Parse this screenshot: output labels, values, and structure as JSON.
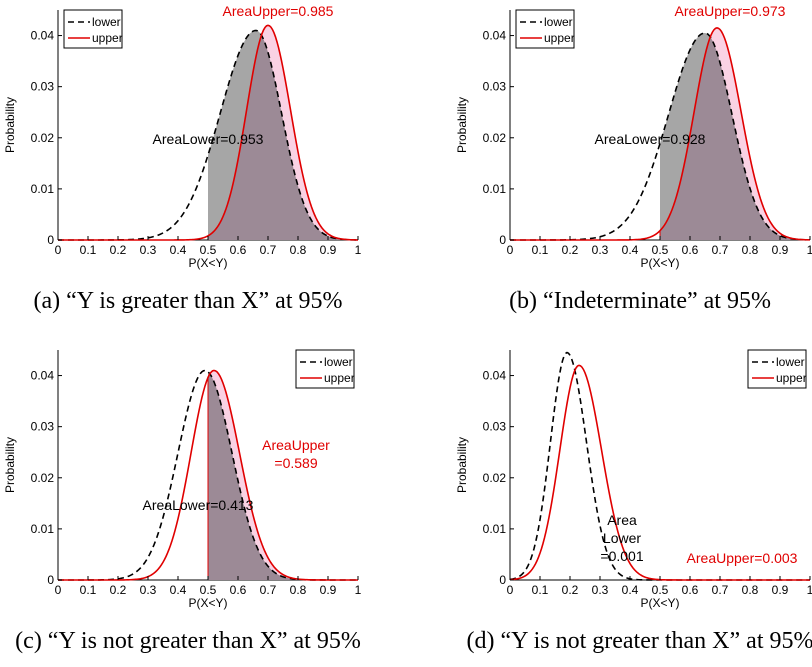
{
  "chart_data": [
    {
      "type": "line",
      "panel": "a",
      "caption": "(a) “Y is greater than X” at 95%",
      "xlabel": "P(X<Y)",
      "ylabel": "Probability",
      "xlim": [
        0,
        1
      ],
      "ylim": [
        0,
        0.045
      ],
      "x_ticks": [
        "0",
        "0.1",
        "0.2",
        "0.3",
        "0.4",
        "0.5",
        "0.6",
        "0.7",
        "0.8",
        "0.9",
        "1"
      ],
      "y_ticks": [
        "0",
        "0.01",
        "0.02",
        "0.03",
        "0.04"
      ],
      "legend": {
        "position": "top-left",
        "entries": [
          "lower",
          "upper"
        ]
      },
      "series": [
        {
          "name": "lower",
          "style": "dashed",
          "color": "#000000",
          "peak_x": 0.66,
          "peak_y": 0.041,
          "sd": 0.085,
          "left_shape": 1.4
        },
        {
          "name": "upper",
          "style": "solid",
          "color": "#e00000",
          "peak_x": 0.7,
          "peak_y": 0.042,
          "sd": 0.075,
          "left_shape": 0.95
        }
      ],
      "shade_from_x": 0.5,
      "annotations": [
        {
          "text": "AreaUpper=0.985",
          "color": "#e00000"
        },
        {
          "text": "AreaLower=0.953",
          "color": "#000000"
        }
      ]
    },
    {
      "type": "line",
      "panel": "b",
      "caption": "(b) “Indeterminate” at 95%",
      "xlabel": "P(X<Y)",
      "ylabel": "Probability",
      "xlim": [
        0,
        1
      ],
      "ylim": [
        0,
        0.045
      ],
      "x_ticks": [
        "0",
        "0.1",
        "0.2",
        "0.3",
        "0.4",
        "0.5",
        "0.6",
        "0.7",
        "0.8",
        "0.9",
        "1"
      ],
      "y_ticks": [
        "0",
        "0.01",
        "0.02",
        "0.03",
        "0.04"
      ],
      "legend": {
        "position": "top-left",
        "entries": [
          "lower",
          "upper"
        ]
      },
      "series": [
        {
          "name": "lower",
          "style": "dashed",
          "color": "#000000",
          "peak_x": 0.65,
          "peak_y": 0.0405,
          "sd": 0.09,
          "left_shape": 1.35
        },
        {
          "name": "upper",
          "style": "solid",
          "color": "#e00000",
          "peak_x": 0.69,
          "peak_y": 0.0415,
          "sd": 0.08,
          "left_shape": 0.95
        }
      ],
      "shade_from_x": 0.5,
      "annotations": [
        {
          "text": "AreaUpper=0.973",
          "color": "#e00000"
        },
        {
          "text": "AreaLower=0.928",
          "color": "#000000"
        }
      ]
    },
    {
      "type": "line",
      "panel": "c",
      "caption": "(c) “Y is not greater than X” at 95%",
      "xlabel": "P(X<Y)",
      "ylabel": "Probability",
      "xlim": [
        0,
        1
      ],
      "ylim": [
        0,
        0.045
      ],
      "x_ticks": [
        "0",
        "0.1",
        "0.2",
        "0.3",
        "0.4",
        "0.5",
        "0.6",
        "0.7",
        "0.8",
        "0.9",
        "1"
      ],
      "y_ticks": [
        "0",
        "0.01",
        "0.02",
        "0.03",
        "0.04"
      ],
      "legend": {
        "position": "top-right",
        "entries": [
          "lower",
          "upper"
        ]
      },
      "series": [
        {
          "name": "lower",
          "style": "dashed",
          "color": "#000000",
          "peak_x": 0.49,
          "peak_y": 0.041,
          "sd": 0.09,
          "left_shape": 1.0
        },
        {
          "name": "upper",
          "style": "solid",
          "color": "#e00000",
          "peak_x": 0.52,
          "peak_y": 0.041,
          "sd": 0.085,
          "left_shape": 0.9
        }
      ],
      "shade_from_x": 0.5,
      "annotations": [
        {
          "text": "AreaUpper",
          "color": "#e00000"
        },
        {
          "text": "=0.589",
          "color": "#e00000"
        },
        {
          "text": "AreaLower=0.413",
          "color": "#000000"
        }
      ]
    },
    {
      "type": "line",
      "panel": "d",
      "caption": "(d) “Y is not greater than X” at 95%",
      "xlabel": "P(X<Y)",
      "ylabel": "Probability",
      "xlim": [
        0,
        1
      ],
      "ylim": [
        0,
        0.045
      ],
      "x_ticks": [
        "0",
        "0.1",
        "0.2",
        "0.3",
        "0.4",
        "0.5",
        "0.6",
        "0.7",
        "0.8",
        "0.9",
        "1"
      ],
      "y_ticks": [
        "0",
        "0.01",
        "0.02",
        "0.03",
        "0.04"
      ],
      "legend": {
        "position": "top-right",
        "entries": [
          "lower",
          "upper"
        ]
      },
      "series": [
        {
          "name": "lower",
          "style": "dashed",
          "color": "#000000",
          "peak_x": 0.19,
          "peak_y": 0.0445,
          "sd": 0.065,
          "left_shape": 0.85
        },
        {
          "name": "upper",
          "style": "solid",
          "color": "#e00000",
          "peak_x": 0.23,
          "peak_y": 0.042,
          "sd": 0.075,
          "left_shape": 0.85
        }
      ],
      "shade_from_x": 0.5,
      "annotations": [
        {
          "text": "Area",
          "color": "#000000"
        },
        {
          "text": "Lower",
          "color": "#000000"
        },
        {
          "text": "=0.001",
          "color": "#000000"
        },
        {
          "text": "AreaUpper=0.003",
          "color": "#e00000"
        }
      ]
    }
  ],
  "colors": {
    "lower_fill": "#a6a6a6",
    "upper_fill": "#fad2e4",
    "overlap_fill": "#9c8a96",
    "red": "#e00000"
  }
}
